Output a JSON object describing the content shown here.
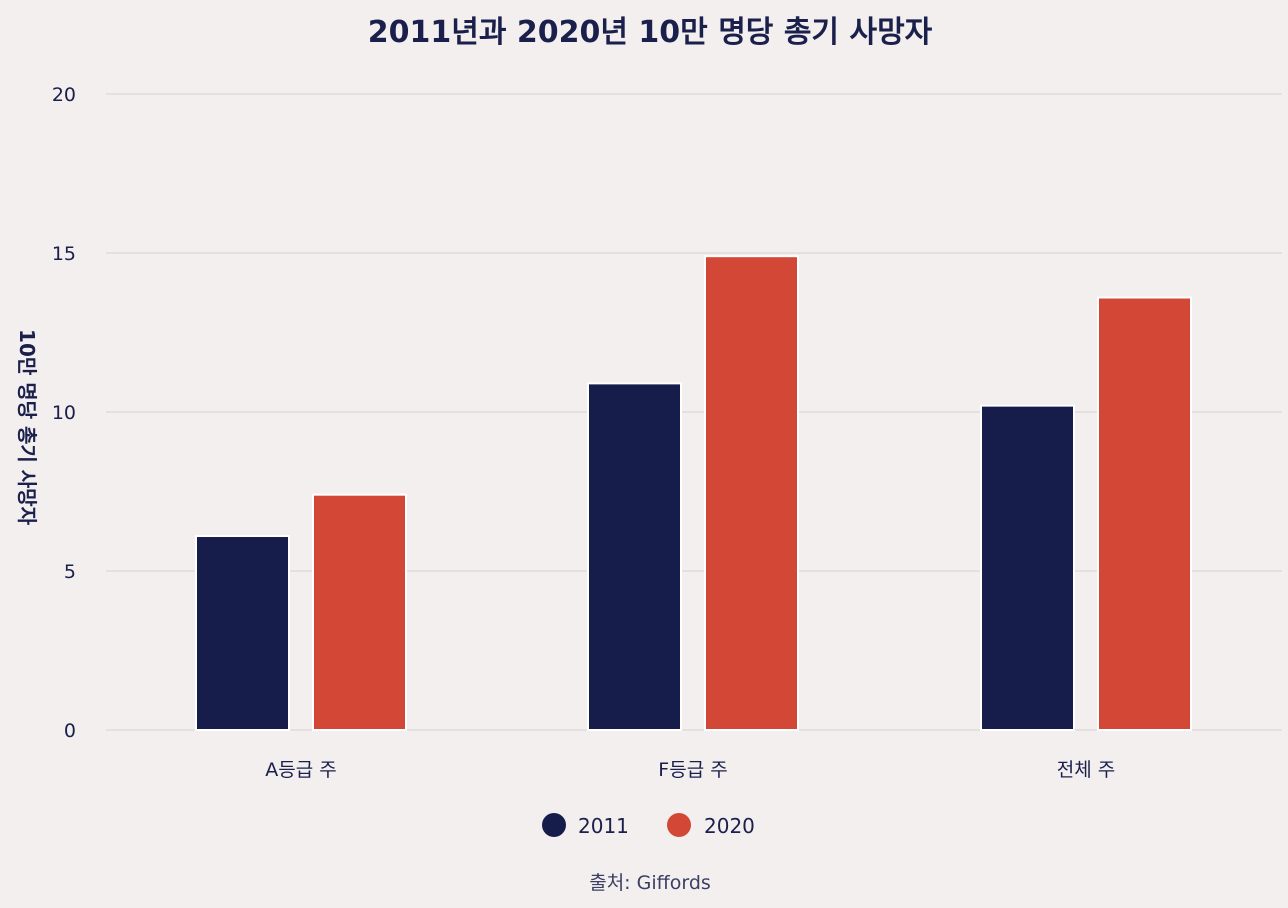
{
  "chart_data": {
    "type": "bar",
    "title": "2011년과 2020년 10만 명당 총기 사망자",
    "ylabel": "10만 명당 총기 사망자",
    "xlabel": "",
    "categories": [
      "A등급 주",
      "F등급 주",
      "전체 주"
    ],
    "series": [
      {
        "name": "2011",
        "values": [
          6.1,
          10.9,
          10.2
        ],
        "color": "#171d4b"
      },
      {
        "name": "2020",
        "values": [
          7.4,
          14.9,
          13.6
        ],
        "color": "#d34737"
      }
    ],
    "ylim": [
      0,
      20
    ],
    "yticks": [
      0,
      5,
      10,
      15,
      20
    ],
    "grid": true,
    "legend": "bottom-center",
    "source": "출처: Giffords"
  }
}
